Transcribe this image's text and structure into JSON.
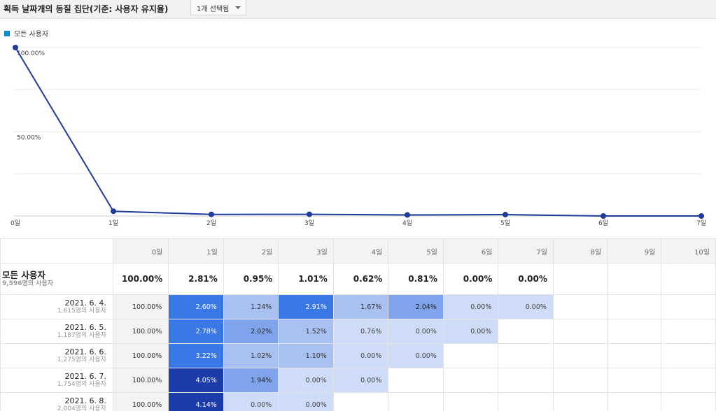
{
  "header": {
    "title": "획득 날짜개의 동질 집단(기준: 사용자 유지율)",
    "dropdown_label": "1개 선택됨"
  },
  "colors": {
    "series": "#1f3b9c",
    "legend": "#058dc7",
    "cell_scale": [
      "#cfdcf7",
      "#a9c1f1",
      "#80a4ec",
      "#3a78e5",
      "#1c3caa"
    ]
  },
  "chart_data": {
    "type": "line",
    "title": "",
    "legend": [
      "모든 사용자"
    ],
    "x": [
      "0일",
      "1일",
      "2일",
      "3일",
      "4일",
      "5일",
      "6일",
      "7일"
    ],
    "series": [
      {
        "name": "모든 사용자",
        "values": [
          100.0,
          2.81,
          0.95,
          1.01,
          0.62,
          0.81,
          0.0,
          0.0
        ]
      }
    ],
    "yticks": [
      "100.00%",
      "50.00%"
    ],
    "ylim": [
      0,
      100
    ],
    "grid": true
  },
  "table": {
    "columns": [
      "0일",
      "1일",
      "2일",
      "3일",
      "4일",
      "5일",
      "6일",
      "7일",
      "8일",
      "9일",
      "10일"
    ],
    "summary": {
      "label": "모든 사용자",
      "sub": "9,596명의 사용자",
      "values": [
        "100.00%",
        "2.81%",
        "0.95%",
        "1.01%",
        "0.62%",
        "0.81%",
        "0.00%",
        "0.00%"
      ]
    },
    "rows": [
      {
        "date": "2021. 6. 4.",
        "sub": "1,615명의 사용자",
        "values": [
          "100.00%",
          "2.60%",
          "1.24%",
          "2.91%",
          "1.67%",
          "2.04%",
          "0.00%",
          "0.00%"
        ]
      },
      {
        "date": "2021. 6. 5.",
        "sub": "1,187명의 사용자",
        "values": [
          "100.00%",
          "2.78%",
          "2.02%",
          "1.52%",
          "0.76%",
          "0.00%",
          "0.00%"
        ]
      },
      {
        "date": "2021. 6. 6.",
        "sub": "1,275명의 사용자",
        "values": [
          "100.00%",
          "3.22%",
          "1.02%",
          "1.10%",
          "0.00%",
          "0.00%"
        ]
      },
      {
        "date": "2021. 6. 7.",
        "sub": "1,754명의 사용자",
        "values": [
          "100.00%",
          "4.05%",
          "1.94%",
          "0.00%",
          "0.00%"
        ]
      },
      {
        "date": "2021. 6. 8.",
        "sub": "2,004명의 사용자",
        "values": [
          "100.00%",
          "4.14%",
          "0.00%",
          "0.00%"
        ]
      }
    ]
  }
}
